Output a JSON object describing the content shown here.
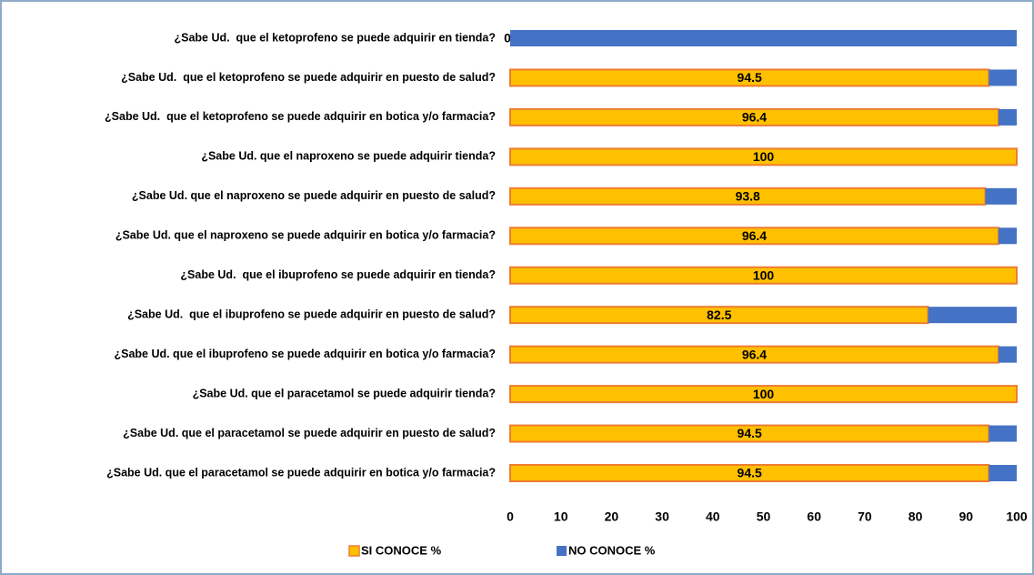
{
  "chart_data": {
    "type": "stacked_barh",
    "categories": [
      "¿Sabe Ud.  que el ketoprofeno se puede adquirir en tienda?",
      "¿Sabe Ud.  que el ketoprofeno se puede adquirir en puesto de salud?",
      "¿Sabe Ud.  que el ketoprofeno se puede adquirir en botica y/o farmacia?",
      "¿Sabe Ud. que el naproxeno se puede adquirir tienda?",
      "¿Sabe Ud. que el naproxeno se puede adquirir en puesto de salud?",
      "¿Sabe Ud. que el naproxeno se puede adquirir en botica y/o farmacia?",
      "¿Sabe Ud.  que el ibuprofeno se puede adquirir en tienda?",
      "¿Sabe Ud.  que el ibuprofeno se puede adquirir en puesto de salud?",
      "¿Sabe Ud. que el ibuprofeno se puede adquirir en botica y/o farmacia?",
      "¿Sabe Ud. que el paracetamol se puede adquirir tienda?",
      "¿Sabe Ud. que el paracetamol se puede adquirir en puesto de salud?",
      "¿Sabe Ud. que el paracetamol se puede adquirir en botica y/o farmacia?"
    ],
    "series": [
      {
        "name": "SI CONOCE %",
        "color": "#FFC000",
        "edge_color": "#ED7D31",
        "values": [
          0,
          94.5,
          96.4,
          100,
          93.8,
          96.4,
          100,
          82.5,
          96.4,
          100,
          94.5,
          94.5
        ]
      },
      {
        "name": "NO CONOCE %",
        "color": "#4472C4",
        "values": [
          100,
          5.5,
          3.6,
          0,
          6.2,
          3.6,
          0,
          17.5,
          3.6,
          0,
          5.5,
          5.5
        ]
      }
    ],
    "xlim": [
      0,
      100
    ],
    "xticks": [
      0,
      10,
      20,
      30,
      40,
      50,
      60,
      70,
      80,
      90,
      100
    ]
  }
}
